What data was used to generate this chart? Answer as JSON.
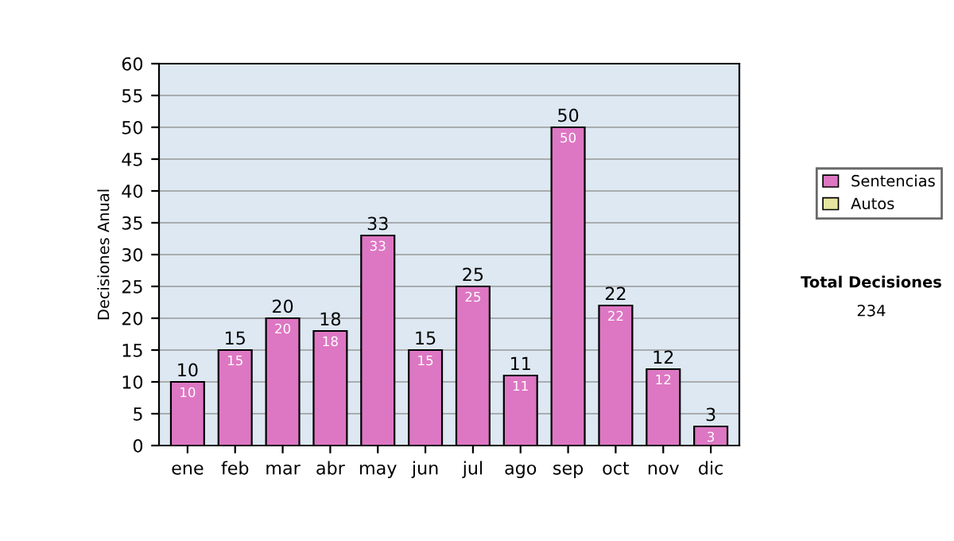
{
  "chart_data": {
    "type": "bar",
    "ylabel": "Decisiones Anual",
    "categories": [
      "ene",
      "feb",
      "mar",
      "abr",
      "may",
      "jun",
      "jul",
      "ago",
      "sep",
      "oct",
      "nov",
      "dic"
    ],
    "series": [
      {
        "name": "Sentencias",
        "color": "#dd77c3",
        "values": [
          10,
          15,
          20,
          18,
          33,
          15,
          25,
          11,
          50,
          22,
          12,
          3
        ],
        "value_labels": [
          "10",
          "15",
          "20",
          "18",
          "33",
          "15",
          "25",
          "11",
          "50",
          "22",
          "12",
          "3"
        ]
      },
      {
        "name": "Autos",
        "color": "#e6e6a0",
        "values": [
          null,
          null,
          null,
          null,
          null,
          null,
          null,
          null,
          null,
          null,
          null,
          null
        ]
      }
    ],
    "ylim": [
      0,
      60
    ],
    "yticks": [
      0,
      5,
      10,
      15,
      20,
      25,
      30,
      35,
      40,
      45,
      50,
      55,
      60
    ],
    "grid": "y",
    "legend": "right",
    "annotations": [
      "Total Decisiones",
      "234",
      {
        "text": "10",
        "x": "ene",
        "y": 10
      },
      {
        "text": "15",
        "x": "feb",
        "y": 15
      },
      {
        "text": "20",
        "x": "mar",
        "y": 20
      },
      {
        "text": "18",
        "x": "abr",
        "y": 18
      },
      {
        "text": "33",
        "x": "may",
        "y": 33
      },
      {
        "text": "15",
        "x": "jun",
        "y": 15
      },
      {
        "text": "25",
        "x": "jul",
        "y": 25
      },
      {
        "text": "11",
        "x": "ago",
        "y": 11
      },
      {
        "text": "50",
        "x": "sep",
        "y": 50
      },
      {
        "text": "22",
        "x": "oct",
        "y": 22
      },
      {
        "text": "12",
        "x": "nov",
        "y": 12
      },
      {
        "text": "3",
        "x": "dic",
        "y": 3
      }
    ]
  }
}
